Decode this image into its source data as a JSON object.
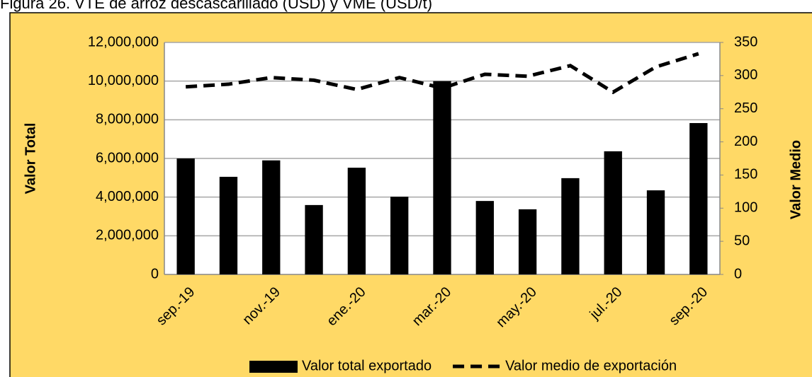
{
  "chart_data": {
    "type": "bar_line",
    "title": "Figura 26. VTE de arroz descascarillado (USD) y VME (USD/t)",
    "ylabel": "Valor Total",
    "y2label": "Valor Medio",
    "categories": [
      "sep.-19",
      null,
      "nov.-19",
      null,
      "ene.-20",
      null,
      "mar.-20",
      null,
      "may.-20",
      null,
      "jul.-20",
      null,
      "sep.-20"
    ],
    "series": [
      {
        "name": "Valor total exportado",
        "color": "#000000",
        "kind": "bar",
        "values": [
          6000000,
          5050000,
          5900000,
          3590000,
          5520000,
          4020000,
          10000000,
          3800000,
          3370000,
          4980000,
          6370000,
          4350000,
          7830000
        ]
      },
      {
        "name": "Valor medio de exportación",
        "color": "#000000",
        "kind": "line",
        "dashed": true,
        "axis": "y2",
        "values": [
          283,
          287,
          297,
          293,
          279,
          297,
          281,
          302,
          299,
          315,
          275,
          313,
          333
        ]
      }
    ],
    "ylim": [
      0,
      12000000
    ],
    "yticks": [
      0,
      {
        "value": 2000000,
        "label": "2,000,000"
      },
      {
        "value": 4000000,
        "label": "4,000,000"
      },
      {
        "value": 6000000,
        "label": "6,000,000"
      },
      {
        "value": 8000000,
        "label": "8,000,000"
      },
      {
        "value": 10000000,
        "label": "10,000,000"
      },
      {
        "value": 12000000,
        "label": "12,000,000"
      }
    ],
    "y2lim": [
      0,
      350
    ],
    "y2ticks": [
      0,
      50,
      100,
      150,
      200,
      250,
      300,
      350
    ],
    "grid": true,
    "background": "#ffd966",
    "legend": "bottom"
  }
}
